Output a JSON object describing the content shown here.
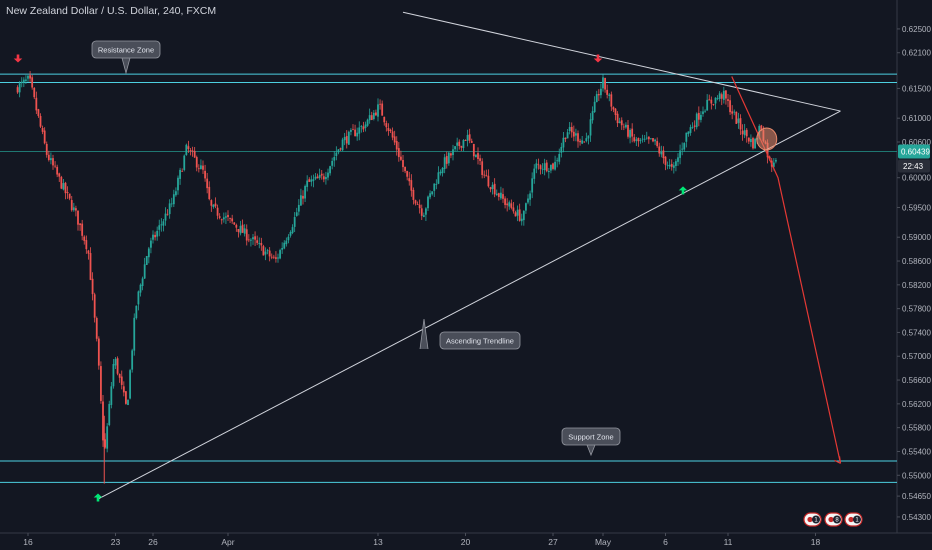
{
  "header": {
    "title": "New Zealand Dollar / U.S. Dollar, 240, FXCM"
  },
  "chart_data": {
    "type": "candlestick",
    "symbol": "NZDUSD",
    "ylim": [
      0.5403,
      0.6265
    ],
    "yticks": [
      "0.62500",
      "0.62100",
      "0.61500",
      "0.61000",
      "0.60600",
      "0.60000",
      "0.59500",
      "0.59000",
      "0.58600",
      "0.58200",
      "0.57800",
      "0.57400",
      "0.57000",
      "0.56600",
      "0.56200",
      "0.55800",
      "0.55400",
      "0.55000",
      "0.54650",
      "0.54300"
    ],
    "xlim": [
      0,
      64
    ],
    "xticks": [
      {
        "label": "16",
        "day": 0
      },
      {
        "label": "23",
        "day": 7
      },
      {
        "label": "26",
        "day": 10
      },
      {
        "label": "Apr",
        "day": 16
      },
      {
        "label": "13",
        "day": 28
      },
      {
        "label": "20",
        "day": 35
      },
      {
        "label": "27",
        "day": 42
      },
      {
        "label": "May",
        "day": 46
      },
      {
        "label": "6",
        "day": 51
      },
      {
        "label": "11",
        "day": 56
      },
      {
        "label": "18",
        "day": 63
      }
    ],
    "last_price": {
      "value": "0.60439",
      "countdown": "22:43",
      "price": 0.6044,
      "color": "#26a69a"
    },
    "candle_colors": {
      "up": "#26a69a",
      "down": "#ef5350"
    },
    "anchors": [
      {
        "day": -1.0,
        "price": 0.615
      },
      {
        "day": 0.1,
        "price": 0.6165
      },
      {
        "day": 1.5,
        "price": 0.604
      },
      {
        "day": 3.8,
        "price": 0.594
      },
      {
        "day": 4.8,
        "price": 0.588
      },
      {
        "day": 5.6,
        "price": 0.57
      },
      {
        "day": 6.1,
        "price": 0.553
      },
      {
        "day": 6.9,
        "price": 0.57
      },
      {
        "day": 7.9,
        "price": 0.561
      },
      {
        "day": 8.6,
        "price": 0.578
      },
      {
        "day": 9.6,
        "price": 0.588
      },
      {
        "day": 11.6,
        "price": 0.596
      },
      {
        "day": 12.7,
        "price": 0.605
      },
      {
        "day": 14.0,
        "price": 0.601
      },
      {
        "day": 14.6,
        "price": 0.595
      },
      {
        "day": 16.6,
        "price": 0.592
      },
      {
        "day": 18.7,
        "price": 0.588
      },
      {
        "day": 19.8,
        "price": 0.586
      },
      {
        "day": 21.3,
        "price": 0.593
      },
      {
        "day": 22.3,
        "price": 0.599
      },
      {
        "day": 23.6,
        "price": 0.6
      },
      {
        "day": 25.1,
        "price": 0.606
      },
      {
        "day": 27.0,
        "price": 0.609
      },
      {
        "day": 28.1,
        "price": 0.612
      },
      {
        "day": 29.5,
        "price": 0.605
      },
      {
        "day": 30.6,
        "price": 0.598
      },
      {
        "day": 31.6,
        "price": 0.594
      },
      {
        "day": 33.1,
        "price": 0.602
      },
      {
        "day": 35.1,
        "price": 0.607
      },
      {
        "day": 36.6,
        "price": 0.6
      },
      {
        "day": 38.1,
        "price": 0.596
      },
      {
        "day": 39.6,
        "price": 0.593
      },
      {
        "day": 40.6,
        "price": 0.602
      },
      {
        "day": 42.1,
        "price": 0.602
      },
      {
        "day": 43.1,
        "price": 0.608
      },
      {
        "day": 44.6,
        "price": 0.606
      },
      {
        "day": 45.6,
        "price": 0.614
      },
      {
        "day": 46.0,
        "price": 0.616
      },
      {
        "day": 47.1,
        "price": 0.61
      },
      {
        "day": 48.6,
        "price": 0.606
      },
      {
        "day": 50.1,
        "price": 0.606
      },
      {
        "day": 50.6,
        "price": 0.604
      },
      {
        "day": 51.6,
        "price": 0.601
      },
      {
        "day": 52.6,
        "price": 0.607
      },
      {
        "day": 54.1,
        "price": 0.612
      },
      {
        "day": 55.6,
        "price": 0.614
      },
      {
        "day": 57.1,
        "price": 0.608
      },
      {
        "day": 58.1,
        "price": 0.6055
      },
      {
        "day": 58.6,
        "price": 0.609
      },
      {
        "day": 59.4,
        "price": 0.602
      },
      {
        "day": 59.9,
        "price": 0.604
      }
    ],
    "resistance_zone": {
      "label": "Resistance Zone",
      "upper": 0.6174,
      "lower": 0.616,
      "color": "#4dd0e1"
    },
    "support_zone": {
      "label": "Support Zone",
      "upper": 0.5524,
      "lower": 0.5488,
      "color": "#4dd0e1"
    },
    "mid_level": 0.6044,
    "ascending_trendline": {
      "label": "Ascending Trendline",
      "from": {
        "day": 5.6,
        "price": 0.546
      },
      "to": {
        "day": 65.0,
        "price": 0.6112
      },
      "color": "#d1d4dc"
    },
    "descending_line": {
      "from": {
        "day": 30.0,
        "price": 0.6278
      },
      "to": {
        "day": 65.0,
        "price": 0.6112
      },
      "color": "#d1d4dc"
    },
    "projection": {
      "from": {
        "day": 56.3,
        "price": 0.617
      },
      "mid": {
        "day": 60.0,
        "price": 0.6
      },
      "to": {
        "day": 65.0,
        "price": 0.552
      },
      "color": "#e53935"
    },
    "breakout_circle": {
      "day": 59.1,
      "price": 0.6065,
      "color": "#e88a6c"
    },
    "sell_arrows": [
      {
        "day": -0.8,
        "price": 0.6197,
        "color": "#f23645"
      },
      {
        "day": 45.6,
        "price": 0.6197,
        "color": "#f23645"
      }
    ],
    "buy_arrows": [
      {
        "day": 5.6,
        "price": 0.5466,
        "color": "#00e676"
      },
      {
        "day": 52.4,
        "price": 0.5982,
        "color": "#00e676"
      }
    ],
    "event_badges": [
      "1",
      "8",
      "1"
    ]
  }
}
